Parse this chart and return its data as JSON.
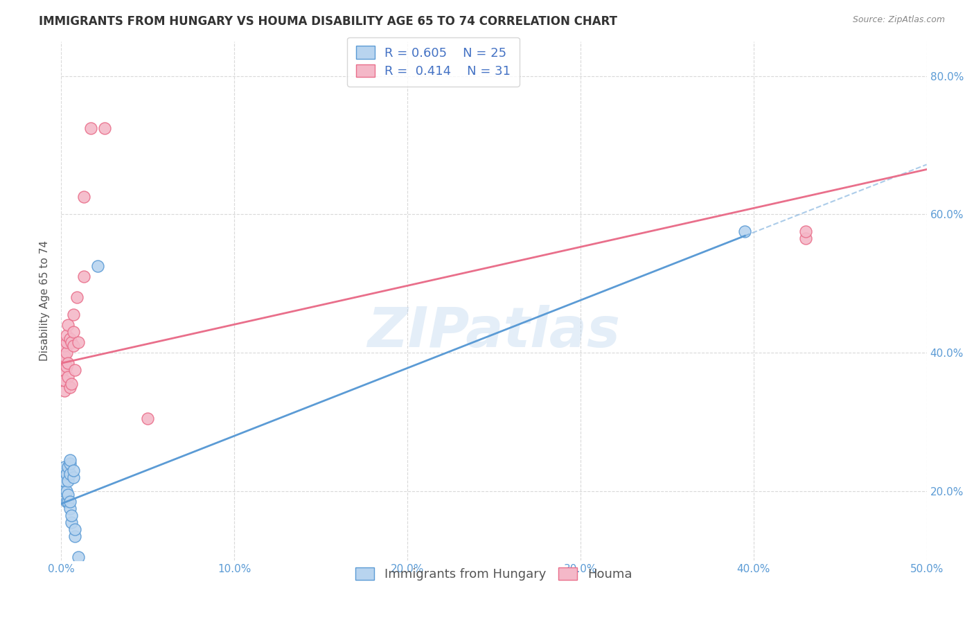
{
  "title": "IMMIGRANTS FROM HUNGARY VS HOUMA DISABILITY AGE 65 TO 74 CORRELATION CHART",
  "source": "Source: ZipAtlas.com",
  "ylabel": "Disability Age 65 to 74",
  "xlim": [
    0.0,
    0.5
  ],
  "ylim": [
    0.1,
    0.85
  ],
  "xticks": [
    0.0,
    0.1,
    0.2,
    0.3,
    0.4,
    0.5
  ],
  "yticks": [
    0.2,
    0.4,
    0.6,
    0.8
  ],
  "ytick_labels_right": [
    "20.0%",
    "40.0%",
    "60.0%",
    "80.0%"
  ],
  "xtick_labels": [
    "0.0%",
    "10.0%",
    "20.0%",
    "30.0%",
    "40.0%",
    "50.0%"
  ],
  "grid_color": "#d9d9d9",
  "background_color": "#ffffff",
  "watermark": "ZIPatlas",
  "blue_scatter": {
    "x": [
      0.001,
      0.002,
      0.002,
      0.002,
      0.003,
      0.003,
      0.003,
      0.004,
      0.004,
      0.004,
      0.004,
      0.005,
      0.005,
      0.005,
      0.005,
      0.005,
      0.006,
      0.006,
      0.007,
      0.007,
      0.008,
      0.008,
      0.01,
      0.021,
      0.395
    ],
    "y": [
      0.225,
      0.2,
      0.215,
      0.235,
      0.185,
      0.2,
      0.225,
      0.185,
      0.195,
      0.215,
      0.235,
      0.175,
      0.185,
      0.225,
      0.24,
      0.245,
      0.155,
      0.165,
      0.22,
      0.23,
      0.135,
      0.145,
      0.105,
      0.525,
      0.575
    ],
    "color": "#b8d4ef",
    "edgecolor": "#5b9bd5",
    "label": "Immigrants from Hungary",
    "R": 0.605,
    "N": 25
  },
  "pink_scatter": {
    "x": [
      0.001,
      0.001,
      0.001,
      0.002,
      0.002,
      0.002,
      0.002,
      0.003,
      0.003,
      0.003,
      0.003,
      0.004,
      0.004,
      0.004,
      0.005,
      0.005,
      0.006,
      0.006,
      0.007,
      0.007,
      0.007,
      0.008,
      0.009,
      0.01,
      0.013,
      0.013,
      0.017,
      0.025,
      0.43,
      0.43,
      0.05
    ],
    "y": [
      0.36,
      0.375,
      0.39,
      0.345,
      0.36,
      0.395,
      0.41,
      0.38,
      0.4,
      0.415,
      0.425,
      0.365,
      0.385,
      0.44,
      0.35,
      0.42,
      0.355,
      0.415,
      0.41,
      0.43,
      0.455,
      0.375,
      0.48,
      0.415,
      0.51,
      0.625,
      0.725,
      0.725,
      0.565,
      0.575,
      0.305
    ],
    "color": "#f4b8c8",
    "edgecolor": "#e96f8b",
    "label": "Houma",
    "R": 0.414,
    "N": 31
  },
  "blue_line": {
    "x_start": 0.0,
    "x_end": 0.395,
    "x_dash_start": 0.395,
    "x_dash_end": 0.5,
    "y_intercept": 0.182,
    "slope": 0.98,
    "color": "#5b9bd5"
  },
  "pink_line": {
    "x_start": 0.0,
    "x_end": 0.5,
    "y_intercept": 0.385,
    "slope": 0.56,
    "color": "#e96f8b"
  },
  "legend_blue_R": "0.605",
  "legend_blue_N": "25",
  "legend_pink_R": "0.414",
  "legend_pink_N": "31",
  "title_fontsize": 12,
  "axis_label_fontsize": 11,
  "tick_fontsize": 11,
  "legend_fontsize": 13
}
